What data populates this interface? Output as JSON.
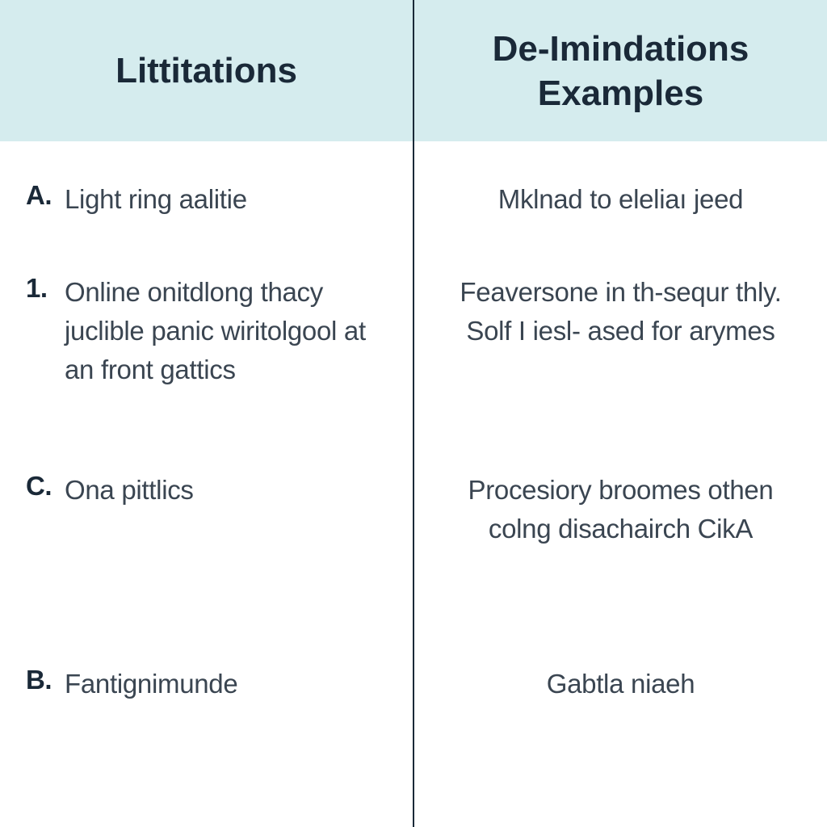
{
  "table": {
    "type": "two-column-comparison",
    "background_color": "#ffffff",
    "header_background_color": "#d5ecee",
    "divider_color": "#1a2938",
    "header_text_color": "#1a2938",
    "body_text_color": "#3a4551",
    "marker_text_color": "#1a2938",
    "header_fontsize": 44,
    "body_fontsize": 33,
    "header_fontweight": 600,
    "marker_fontweight": 700,
    "columns": [
      {
        "header": "Littitations"
      },
      {
        "header": "De-Imindations Examples"
      }
    ],
    "rows": [
      {
        "left_marker": "A.",
        "left_text": "Light ring aalitie",
        "right_text": "Mklnad to eleliaı jeed"
      },
      {
        "left_marker": "1.",
        "left_text": "Online onitdlong thacy juclible panic wiritolgool at an front gattics",
        "right_text": "Feaversone in th-sequr thly.  Solf I iesl- ased for arymes"
      },
      {
        "left_marker": "C.",
        "left_text": "Ona pittlics",
        "right_text": "Procesiory broomes othen colng disachairch CikA"
      },
      {
        "left_marker": "B.",
        "left_text": "Fantignimunde",
        "right_text": "Gabtla niaeh"
      }
    ]
  }
}
